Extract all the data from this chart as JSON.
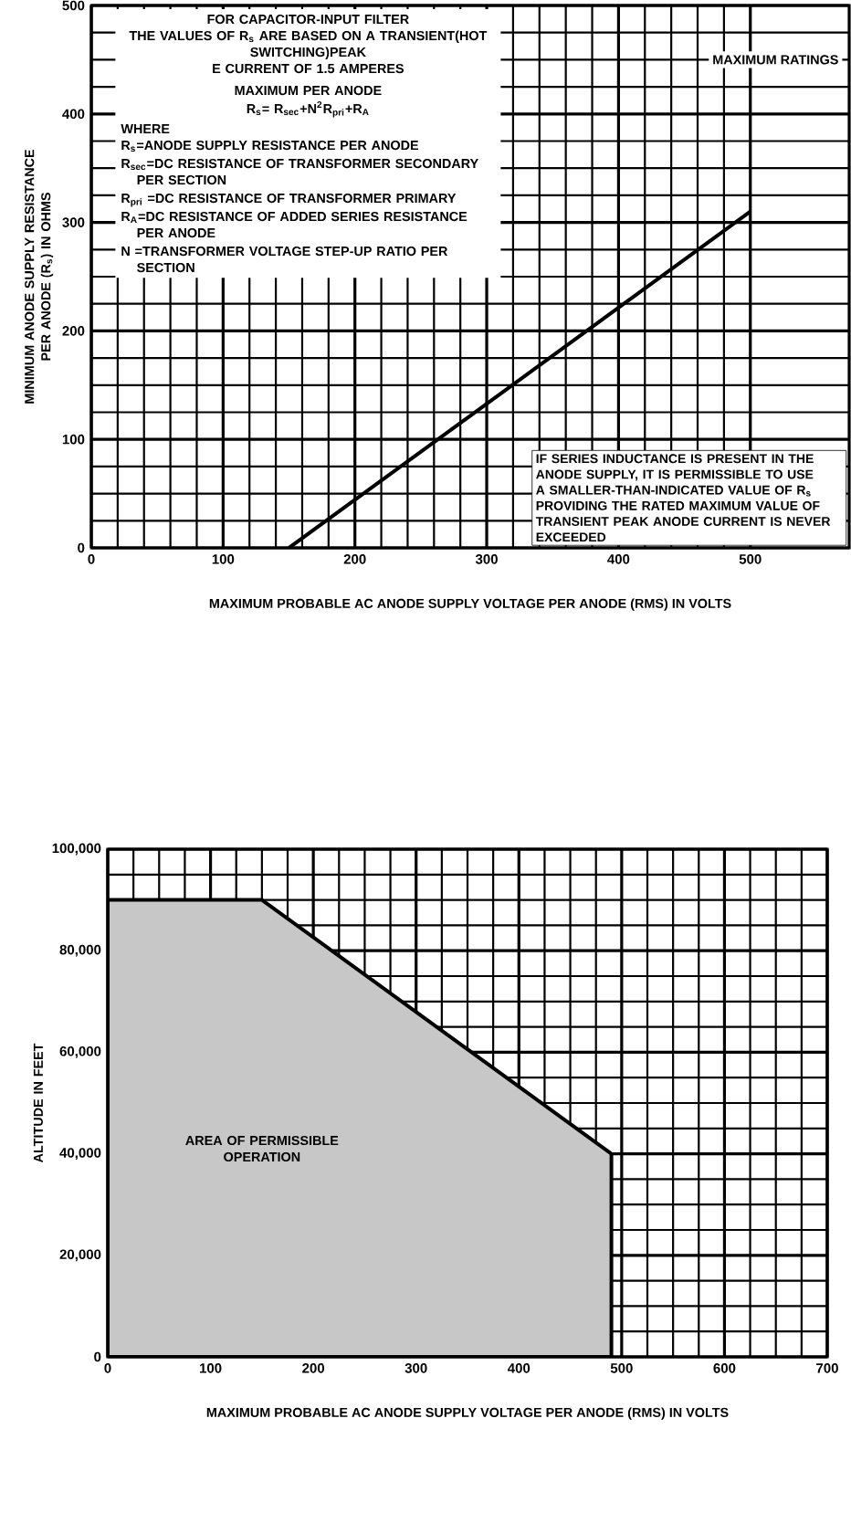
{
  "chart_data": [
    {
      "type": "line",
      "xlabel": "MAXIMUM PROBABLE AC ANODE SUPPLY VOLTAGE PER ANODE (RMS) IN VOLTS",
      "ylabel": "MINIMUM ANODE SUPPLY RESISTANCE PER ANODE (R$_{s}$) IN OHMS",
      "x": [
        150,
        500
      ],
      "values": [
        0,
        310
      ],
      "color": "#000000",
      "xlim": [
        0,
        575
      ],
      "xticks": [
        0,
        100,
        200,
        300,
        400,
        500
      ],
      "ylim": [
        0,
        500
      ],
      "yticks": [
        0,
        100,
        200,
        300,
        400,
        500
      ],
      "grid": true,
      "annotations": [
        "FOR CAPACITOR-INPUT FILTER",
        "THE VALUES OF R$_{s}$ ARE BASED ON A TRANSIENT(HOT SWITCHING)PEAK",
        "E CURRENT OF 1.5 AMPERES",
        "MAXIMUM PER ANODE",
        "R$_{s}$= R$_{sec}$+N$^{2}$R$_{pri}$+R$_{A}$",
        "WHERE",
        "R$_{s}$=ANODE SUPPLY RESISTANCE PER ANODE",
        "R$_{sec}$=DC RESISTANCE OF TRANSFORMER SECONDARY PER SECTION",
        "R$_{pri}$ =DC RESISTANCE OF TRANSFORMER PRIMARY",
        "R$_{A}$=DC RESISTANCE OF ADDED SERIES RESISTANCE PER ANODE",
        "N =TRANSFORMER VOLTAGE STEP-UP RATIO PER SECTION",
        "MAXIMUM RATINGS",
        "IF SERIES INDUCTANCE IS PRESENT IN THE ANODE SUPPLY, IT IS PERMISSIBLE TO USE A SMALLER-THAN-INDICATED VALUE OF R$_{s}$ PROVIDING THE RATED MAXIMUM VALUE OF TRANSIENT PEAK ANODE CURRENT IS NEVER EXCEEDED"
      ]
    },
    {
      "type": "area",
      "xlabel": "MAXIMUM PROBABLE AC ANODE SUPPLY VOLTAGE PER ANODE (RMS) IN VOLTS",
      "ylabel": "ALTITUDE IN FEET",
      "x": [
        0,
        150,
        490,
        490
      ],
      "values": [
        90000,
        90000,
        40000,
        0
      ],
      "color": "#c7c7c7",
      "xlim": [
        0,
        700
      ],
      "xticks": [
        0,
        100,
        200,
        300,
        400,
        500,
        600,
        700
      ],
      "ylim": [
        0,
        100000
      ],
      "yticks": [
        0,
        {
          "value": 20000,
          "label": "20,000"
        },
        {
          "value": 40000,
          "label": "40,000"
        },
        {
          "value": 60000,
          "label": "60,000"
        },
        {
          "value": 80000,
          "label": "80,000"
        },
        {
          "value": 100000,
          "label": "100,000"
        }
      ],
      "grid": true,
      "annotations": [
        "AREA OF PERMISSIBLE OPERATION"
      ]
    }
  ]
}
